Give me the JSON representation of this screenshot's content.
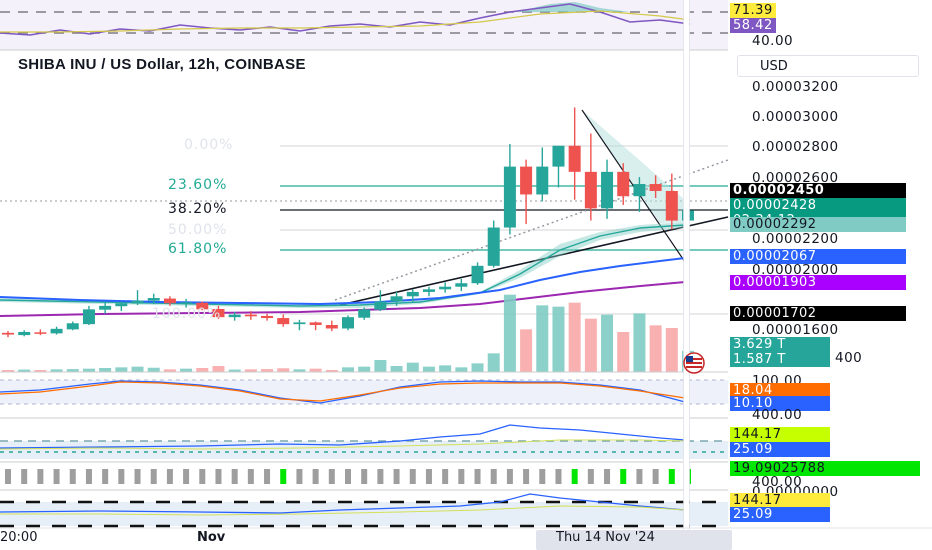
{
  "chart_title": "SHIBA INU / US Dollar, 12h, COINBASE",
  "currency_label": "USD",
  "colors": {
    "up": "#26a69a",
    "down": "#ef5350",
    "fib_teal": "#22ab94",
    "ma_blue": "#2962ff",
    "ma_purple": "#9c27b0",
    "ma_green": "#26a69a",
    "volume_up": "#80cbc4",
    "volume_down": "#f7a9a7",
    "cursor_line": "#ffffff"
  },
  "rsi_panel": {
    "tag_upper": "71.39",
    "tag_lower": "58.42",
    "axis_label": "40.00"
  },
  "fib_levels": [
    "0.00%",
    "23.60%",
    "38.20%",
    "50.00%",
    "61.80%",
    "100.00%"
  ],
  "price_axis": [
    "0.00003200",
    "0.00003000",
    "0.00002800",
    "0.00002600",
    "0.00002200",
    "0.00002000",
    "0.00001600"
  ],
  "price_tags": {
    "fib_black": "0.00002450",
    "last_price": "0.00002428",
    "countdown": "02:34:12",
    "ma_green": "0.00002292",
    "ma_blue": "0.00002067",
    "ma_purple": "0.00001903",
    "fib_low": "0.00001702"
  },
  "volume": {
    "tag_1": "3.629 T",
    "tag_2": "1.587 T",
    "axis_partial": "400"
  },
  "macd_panel": {
    "axis_top": "100.00",
    "tag_orange": "18.04",
    "tag_blue": "10.10",
    "axis_bottom": "400.00"
  },
  "adx_panel": {
    "tag_lime": "144.17",
    "tag_blue": "25.09"
  },
  "osc_panel": {
    "tag_green": "19.09025788",
    "axis_1": "400.00",
    "axis_2": "0.00000000"
  },
  "cci_panel": {
    "tag_yellow": "144.17",
    "tag_blue": "25.09"
  },
  "time_axis": {
    "label_left": "20:00",
    "label_nov": "Nov",
    "cursor_date": "Thu 14 Nov '24"
  },
  "chart_data": {
    "type": "candlestick",
    "interval": "12h",
    "price_range": [
      1.5e-05,
      3.35e-05
    ],
    "fib_prices": [
      2.72e-05,
      2.45e-05,
      2.318e-05,
      2.21e-05,
      2.1e-05,
      1.702e-05
    ],
    "candles": [
      [
        1.725e-05,
        1.735e-05,
        1.7e-05,
        1.715e-05
      ],
      [
        1.712e-05,
        1.74e-05,
        1.705e-05,
        1.73e-05
      ],
      [
        1.728e-05,
        1.745e-05,
        1.712e-05,
        1.72e-05
      ],
      [
        1.722e-05,
        1.76e-05,
        1.715e-05,
        1.748e-05
      ],
      [
        1.745e-05,
        1.79e-05,
        1.74e-05,
        1.78e-05
      ],
      [
        1.775e-05,
        1.88e-05,
        1.77e-05,
        1.86e-05
      ],
      [
        1.858e-05,
        1.9e-05,
        1.835e-05,
        1.88e-05
      ],
      [
        1.878e-05,
        1.905e-05,
        1.85e-05,
        1.895e-05
      ],
      [
        1.893e-05,
        1.97e-05,
        1.885e-05,
        1.91e-05
      ],
      [
        1.91e-05,
        1.95e-05,
        1.89e-05,
        1.925e-05
      ],
      [
        1.922e-05,
        1.935e-05,
        1.88e-05,
        1.895e-05
      ],
      [
        1.895e-05,
        1.92e-05,
        1.87e-05,
        1.9e-05
      ],
      [
        1.898e-05,
        1.905e-05,
        1.855e-05,
        1.86e-05
      ],
      [
        1.862e-05,
        1.88e-05,
        1.805e-05,
        1.815e-05
      ],
      [
        1.815e-05,
        1.845e-05,
        1.795e-05,
        1.83e-05
      ],
      [
        1.83e-05,
        1.85e-05,
        1.8e-05,
        1.82e-05
      ],
      [
        1.822e-05,
        1.835e-05,
        1.795e-05,
        1.81e-05
      ],
      [
        1.81e-05,
        1.83e-05,
        1.76e-05,
        1.775e-05
      ],
      [
        1.775e-05,
        1.8e-05,
        1.74e-05,
        1.785e-05
      ],
      [
        1.785e-05,
        1.79e-05,
        1.74e-05,
        1.77e-05
      ],
      [
        1.77e-05,
        1.795e-05,
        1.735e-05,
        1.75e-05
      ],
      [
        1.75e-05,
        1.825e-05,
        1.74e-05,
        1.815e-05
      ],
      [
        1.812e-05,
        1.87e-05,
        1.8e-05,
        1.86e-05
      ],
      [
        1.858e-05,
        1.97e-05,
        1.85e-05,
        1.905e-05
      ],
      [
        1.905e-05,
        1.96e-05,
        1.88e-05,
        1.935e-05
      ],
      [
        1.935e-05,
        1.975e-05,
        1.905e-05,
        1.96e-05
      ],
      [
        1.96e-05,
        1.99e-05,
        1.935e-05,
        1.975e-05
      ],
      [
        1.975e-05,
        2.015e-05,
        1.955e-05,
        1.99e-05
      ],
      [
        1.99e-05,
        2.035e-05,
        1.965e-05,
        2.01e-05
      ],
      [
        2.01e-05,
        2.13e-05,
        2e-05,
        2.11e-05
      ],
      [
        2.11e-05,
        2.37e-05,
        2.1e-05,
        2.33e-05
      ],
      [
        2.33e-05,
        2.81e-05,
        2.29e-05,
        2.68e-05
      ],
      [
        2.68e-05,
        2.72e-05,
        2.35e-05,
        2.52e-05
      ],
      [
        2.52e-05,
        2.79e-05,
        2.48e-05,
        2.68e-05
      ],
      [
        2.68e-05,
        2.8e-05,
        2.56e-05,
        2.8e-05
      ],
      [
        2.8e-05,
        3.02e-05,
        2.49e-05,
        2.65e-05
      ],
      [
        2.65e-05,
        2.87e-05,
        2.37e-05,
        2.44e-05
      ],
      [
        2.44e-05,
        2.72e-05,
        2.38e-05,
        2.65e-05
      ],
      [
        2.65e-05,
        2.7e-05,
        2.46e-05,
        2.51e-05
      ],
      [
        2.51e-05,
        2.62e-05,
        2.42e-05,
        2.58e-05
      ],
      [
        2.58e-05,
        2.63e-05,
        2.5e-05,
        2.54e-05
      ],
      [
        2.54e-05,
        2.64e-05,
        2.32e-05,
        2.37e-05
      ],
      [
        2.37e-05,
        2.47e-05,
        2.33e-05,
        2.428e-05
      ]
    ],
    "volumes": [
      0.15,
      0.18,
      0.12,
      0.2,
      0.22,
      0.25,
      0.3,
      0.35,
      0.4,
      0.32,
      0.2,
      0.25,
      0.3,
      0.45,
      0.18,
      0.2,
      0.22,
      0.28,
      0.2,
      0.25,
      0.15,
      0.35,
      0.4,
      0.9,
      0.45,
      0.7,
      0.4,
      0.5,
      0.35,
      0.65,
      1.4,
      5.8,
      3.2,
      5.0,
      4.9,
      5.2,
      4.0,
      4.3,
      3.0,
      4.4,
      3.5,
      3.3,
      1.587
    ]
  }
}
